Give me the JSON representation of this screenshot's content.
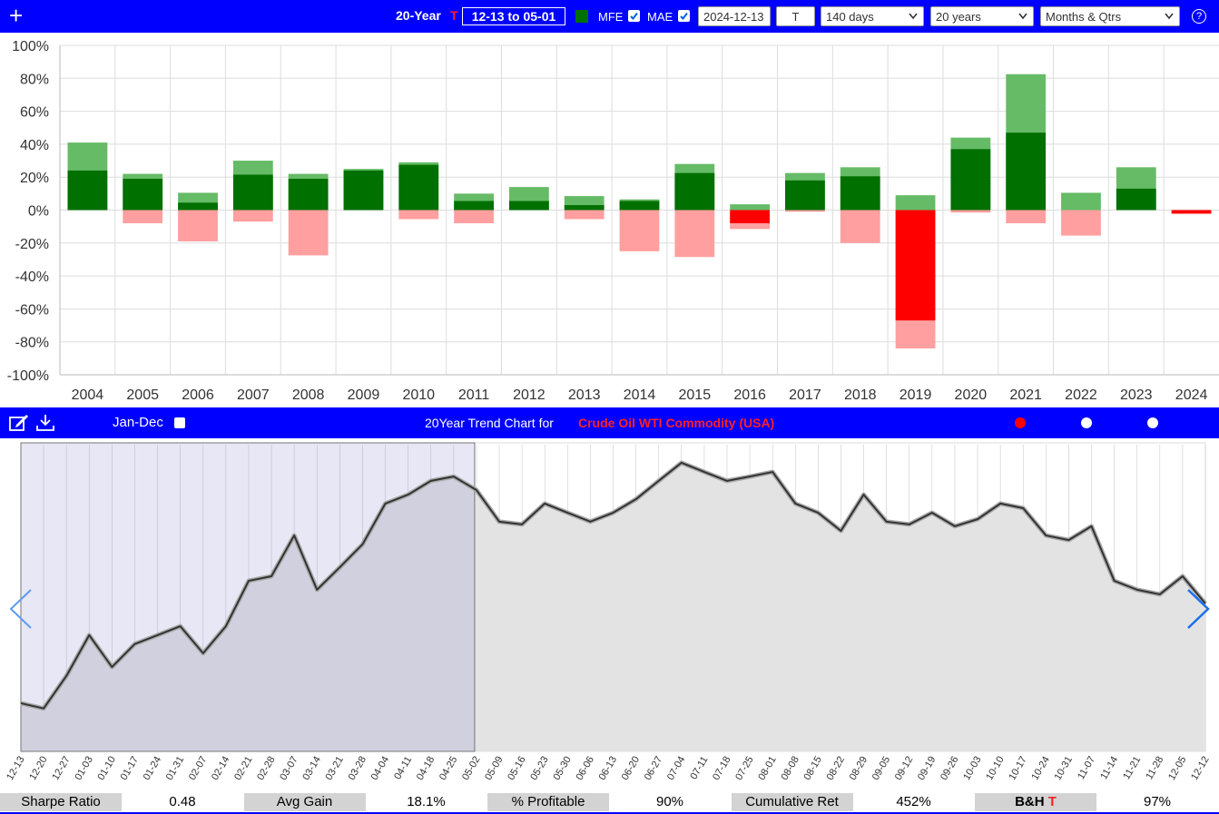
{
  "toolbar": {
    "plus": "+",
    "period": "20-Year",
    "ticker_flag": "T",
    "range": "12-13 to 05-01",
    "mfe": "MFE",
    "mae": "MAE",
    "date": "2024-12-13",
    "t_input": "T",
    "days": "140 days",
    "years": "20 years",
    "view": "Months & Qtrs",
    "help": "?"
  },
  "trend_bar": {
    "jan_dec": "Jan-Dec",
    "title": "20Year Trend Chart for",
    "instrument": "Crude Oil WTI Commodity (USA)"
  },
  "chart_data": [
    {
      "type": "bar",
      "categories": [
        "2004",
        "2005",
        "2006",
        "2007",
        "2008",
        "2009",
        "2010",
        "2011",
        "2012",
        "2013",
        "2014",
        "2015",
        "2016",
        "2017",
        "2018",
        "2019",
        "2020",
        "2021",
        "2022",
        "2023",
        "2024"
      ],
      "series": [
        {
          "name": "MFE",
          "color": "#66bb66",
          "values": [
            41,
            22,
            10.5,
            30,
            22,
            25,
            29,
            10,
            14,
            8.5,
            6.5,
            28,
            3.5,
            22.5,
            26,
            9,
            44,
            82.5,
            10.5,
            26,
            0
          ]
        },
        {
          "name": "MAE",
          "color": "#ff9f9f",
          "values": [
            0,
            -8,
            -19,
            -7,
            -27.5,
            0,
            -5.5,
            -8,
            0,
            -5.5,
            -25,
            -28.5,
            -11.5,
            -1,
            -20,
            -84,
            -1.5,
            -8,
            -15.5,
            0,
            -2.5
          ]
        }
      ],
      "returns": {
        "color": "#007000",
        "negative_color": "#ff0000",
        "values": [
          24,
          19,
          4.5,
          21.5,
          19,
          24,
          27.5,
          5.5,
          5.5,
          3,
          5.5,
          22.5,
          -8,
          18,
          20.5,
          -67,
          37,
          47,
          0,
          13,
          -2
        ]
      },
      "ylim": [
        -100,
        100
      ],
      "yticks": [
        {
          "value": -100,
          "label": "-100%"
        },
        {
          "value": -80,
          "label": "-80%"
        },
        {
          "value": -60,
          "label": "-60%"
        },
        {
          "value": -40,
          "label": "-40%"
        },
        {
          "value": -20,
          "label": "-20%"
        },
        {
          "value": 0,
          "label": "0%"
        },
        {
          "value": 20,
          "label": "20%"
        },
        {
          "value": 40,
          "label": "40%"
        },
        {
          "value": 60,
          "label": "60%"
        },
        {
          "value": 80,
          "label": "80%"
        },
        {
          "value": 100,
          "label": "100%"
        }
      ],
      "grid": true
    },
    {
      "type": "line",
      "categories": [
        "12-13",
        "12-20",
        "12-27",
        "01-03",
        "01-10",
        "01-17",
        "01-24",
        "01-31",
        "02-07",
        "02-14",
        "02-21",
        "02-28",
        "03-07",
        "03-14",
        "03-21",
        "03-28",
        "04-04",
        "04-11",
        "04-18",
        "04-25",
        "05-02",
        "05-09",
        "05-16",
        "05-23",
        "05-30",
        "06-06",
        "06-13",
        "06-20",
        "06-27",
        "07-04",
        "07-11",
        "07-18",
        "07-25",
        "08-01",
        "08-08",
        "08-15",
        "08-22",
        "08-29",
        "09-05",
        "09-12",
        "09-19",
        "09-26",
        "10-03",
        "10-10",
        "10-17",
        "10-24",
        "10-31",
        "11-07",
        "11-14",
        "11-21",
        "11-28",
        "12-05",
        "12-12"
      ],
      "values": [
        15.7,
        14,
        24.6,
        37.9,
        27.5,
        35,
        37.9,
        40.8,
        32,
        40.8,
        55.6,
        57.1,
        70.4,
        52.7,
        60,
        67.5,
        80.8,
        83.7,
        88.2,
        89.6,
        85.2,
        74.9,
        74,
        80.8,
        77.8,
        74.9,
        77.8,
        82.2,
        88.2,
        94.1,
        91.1,
        88.2,
        89.6,
        91.1,
        80.8,
        77.8,
        71.9,
        83.7,
        74.9,
        74,
        77.8,
        73.4,
        75.7,
        80.8,
        79.3,
        70.4,
        68.9,
        73.4,
        55.6,
        52.7,
        51.2,
        57.1,
        48.2
      ],
      "color": "#333333",
      "ylim": [
        0,
        100
      ]
    }
  ],
  "stats": [
    {
      "label": "Sharpe Ratio",
      "value": "0.48"
    },
    {
      "label": "Avg Gain",
      "value": "18.1%"
    },
    {
      "label": "% Profitable",
      "value": "90%"
    },
    {
      "label": "Cumulative Ret",
      "value": "452%"
    },
    {
      "label": "B&H",
      "flag": "T",
      "value": "97%"
    }
  ]
}
